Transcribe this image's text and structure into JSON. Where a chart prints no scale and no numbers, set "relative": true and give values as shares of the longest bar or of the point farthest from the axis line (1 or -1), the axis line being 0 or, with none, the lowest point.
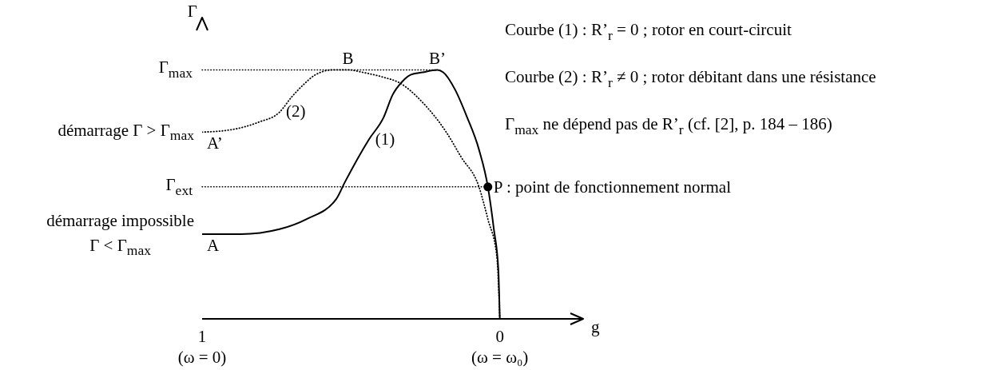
{
  "chart_data": {
    "type": "line",
    "xlabel": "g",
    "ylabel": "Γ",
    "relative": true,
    "xlim": [
      1,
      -0.28
    ],
    "xticks": [
      1,
      0
    ],
    "series": [
      {
        "color": "#000000",
        "line_style": "solid",
        "marker": "none",
        "x": [
          1,
          0.87,
          0.74,
          0.65,
          0.55,
          0.52,
          0.44,
          0.39,
          0.36,
          0.33,
          0.3,
          0.26,
          0.21,
          0.19,
          0.15,
          0.11,
          0.07,
          0.04,
          0.02,
          0.005,
          0
        ],
        "values": [
          0.34,
          0.34,
          0.36,
          0.4,
          0.48,
          0.55,
          0.72,
          0.81,
          0.9,
          0.95,
          0.98,
          0.99,
          1,
          0.99,
          0.92,
          0.81,
          0.68,
          0.53,
          0.36,
          0.2,
          0
        ]
      },
      {
        "color": "#000000",
        "line_style": "dotted",
        "marker": "none",
        "x": [
          1,
          0.9,
          0.81,
          0.74,
          0.7,
          0.66,
          0.62,
          0.56,
          0.51,
          0.46,
          0.39,
          0.34,
          0.26,
          0.18,
          0.13,
          0.07,
          0.04,
          0.01,
          0
        ],
        "values": [
          0.75,
          0.76,
          0.79,
          0.83,
          0.89,
          0.94,
          0.98,
          1,
          1,
          0.99,
          0.97,
          0.95,
          0.87,
          0.75,
          0.65,
          0.53,
          0.4,
          0.25,
          0
        ]
      },
      {
        "type": "scatter",
        "name": "P : point de fonctionnement normal",
        "color": "#000000",
        "marker": "circle",
        "x": [
          0.04
        ],
        "values": [
          0.53
        ]
      }
    ],
    "ref_lines": [
      {
        "axis": "y",
        "value": 1,
        "label": "Γ$_{max}$",
        "color": "#000000",
        "line_style": "dotted"
      },
      {
        "axis": "y",
        "value": 0.53,
        "label": "Γ$_{ext}$",
        "color": "#000000",
        "line_style": "dotted"
      }
    ],
    "annotations": [
      "Courbe (1) : R’$_{r}$ = 0 ; rotor en court-circuit",
      "Courbe (2) : R’$_{r}$ ≠ 0 ; rotor débitant dans une résistance",
      "Γ$_{max}$ ne dépend pas de R’$_{r}$ (cf. [2], p. 184 – 186)",
      {
        "text": "démarrage Γ > Γ$_{max}$",
        "x": 1,
        "y": 0.75
      },
      {
        "text": "démarrage impossible\nΓ < Γ$_{max}$",
        "x": 1,
        "y": 0.34
      },
      {
        "text": "A",
        "x": 1,
        "y": 0.34
      },
      {
        "text": "A’",
        "x": 1,
        "y": 0.75
      },
      {
        "text": "B",
        "x": 0.51,
        "y": 1
      },
      {
        "text": "B’",
        "x": 0.21,
        "y": 1
      },
      {
        "text": "(1)",
        "x": 0.44,
        "y": 0.72
      },
      {
        "text": "(2)",
        "x": 0.74,
        "y": 0.83
      },
      "(ω = 0)",
      "(ω = ω₀)"
    ]
  }
}
